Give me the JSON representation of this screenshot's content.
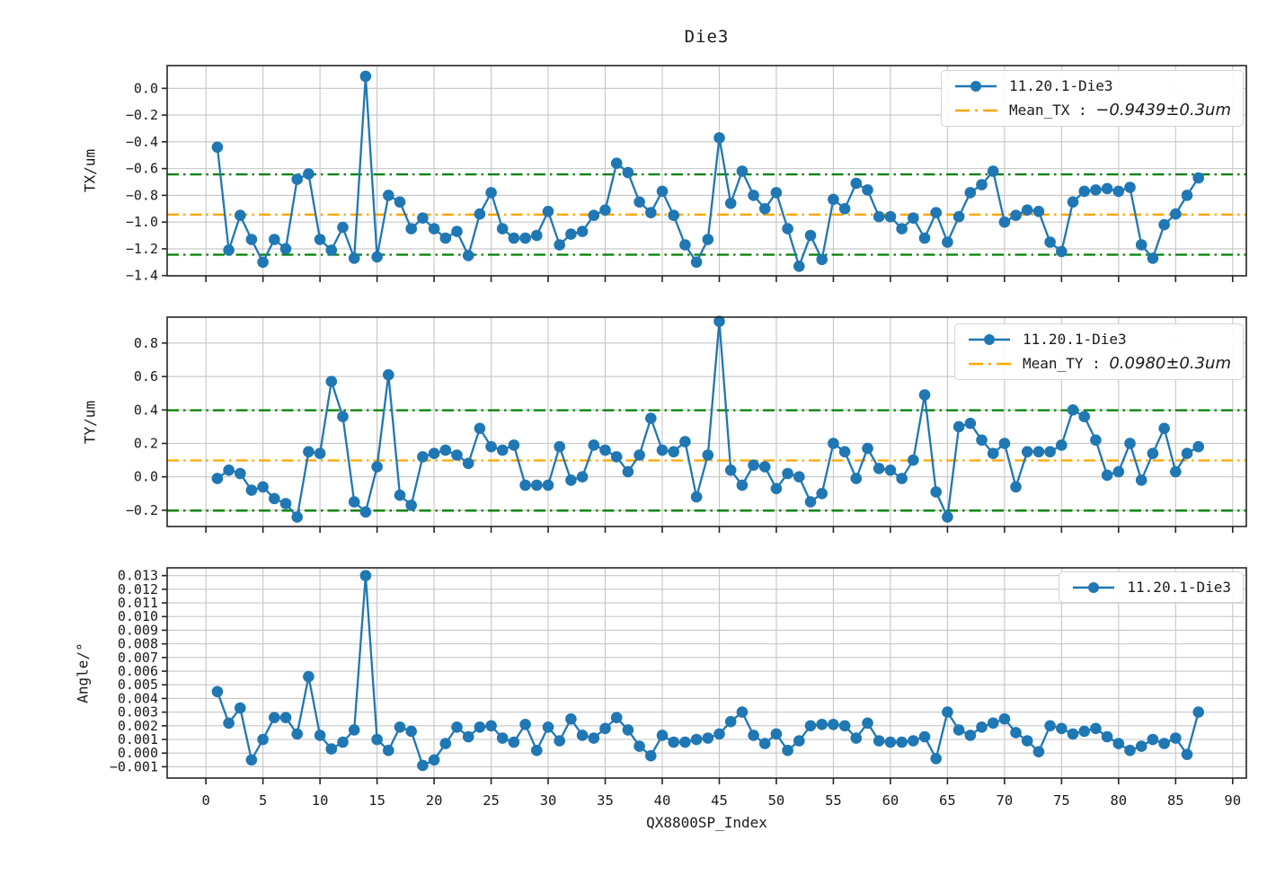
{
  "title": "Die3",
  "colors": {
    "series": "#1f77b4",
    "mean_line": "#FFA500",
    "limit_line": "#008000",
    "grid": "#c6c6c6",
    "spine": "#262626"
  },
  "xaxis": {
    "label": "QX8800SP_Index",
    "ticks": [
      0,
      5,
      10,
      15,
      20,
      25,
      30,
      35,
      40,
      45,
      50,
      55,
      60,
      65,
      70,
      75,
      80,
      85,
      90
    ],
    "xlim": [
      -3.4,
      91.2
    ]
  },
  "legends": {
    "p1": {
      "series": "11.20.1-Die3",
      "mean_prefix": "Mean_TX : ",
      "mean_value": "−0.9439±0.3um"
    },
    "p2": {
      "series": "11.20.1-Die3",
      "mean_prefix": "Mean_TY : ",
      "mean_value": "0.0980±0.3um"
    },
    "p3": {
      "series": "11.20.1-Die3"
    }
  },
  "chart_data": [
    {
      "type": "line",
      "ylabel": "TX/um",
      "series_name": "11.20.1-Die3",
      "mean": -0.9439,
      "band": 0.3,
      "ylim": [
        -1.402,
        0.17
      ],
      "yticks": [
        0.0,
        -0.2,
        -0.4,
        -0.6,
        -0.8,
        -1.0,
        -1.2,
        -1.4
      ],
      "ytick_labels": [
        "0.0",
        "−0.2",
        "−0.4",
        "−0.6",
        "−0.8",
        "−1.0",
        "−1.2",
        "−1.4"
      ],
      "x_start": 1,
      "values": [
        -0.44,
        -1.21,
        -0.95,
        -1.13,
        -1.3,
        -1.13,
        -1.2,
        -0.68,
        -0.64,
        -1.13,
        -1.21,
        -1.04,
        -1.27,
        0.09,
        -1.26,
        -0.8,
        -0.85,
        -1.05,
        -0.97,
        -1.05,
        -1.12,
        -1.07,
        -1.25,
        -0.94,
        -0.78,
        -1.05,
        -1.12,
        -1.12,
        -1.1,
        -0.92,
        -1.17,
        -1.09,
        -1.07,
        -0.95,
        -0.91,
        -0.56,
        -0.63,
        -0.85,
        -0.93,
        -0.77,
        -0.95,
        -1.17,
        -1.3,
        -1.13,
        -0.37,
        -0.86,
        -0.62,
        -0.8,
        -0.9,
        -0.78,
        -1.05,
        -1.33,
        -1.1,
        -1.28,
        -0.83,
        -0.9,
        -0.71,
        -0.76,
        -0.96,
        -0.96,
        -1.05,
        -0.97,
        -1.12,
        -0.93,
        -1.15,
        -0.96,
        -0.78,
        -0.72,
        -0.62,
        -1.0,
        -0.95,
        -0.91,
        -0.92,
        -1.15,
        -1.22,
        -0.85,
        -0.77,
        -0.76,
        -0.75,
        -0.77,
        -0.74,
        -1.17,
        -1.27,
        -1.02,
        -0.94,
        -0.8,
        -0.67
      ]
    },
    {
      "type": "line",
      "ylabel": "TY/um",
      "series_name": "11.20.1-Die3",
      "mean": 0.098,
      "band": 0.3,
      "ylim": [
        -0.297,
        0.955
      ],
      "yticks": [
        0.8,
        0.6,
        0.4,
        0.2,
        0.0,
        -0.2
      ],
      "ytick_labels": [
        "0.8",
        "0.6",
        "0.4",
        "0.2",
        "0.0",
        "−0.2"
      ],
      "x_start": 1,
      "values": [
        -0.01,
        0.04,
        0.02,
        -0.08,
        -0.06,
        -0.13,
        -0.16,
        -0.24,
        0.15,
        0.14,
        0.57,
        0.36,
        -0.15,
        -0.21,
        0.06,
        0.61,
        -0.11,
        -0.17,
        0.12,
        0.14,
        0.16,
        0.13,
        0.08,
        0.29,
        0.18,
        0.16,
        0.19,
        -0.05,
        -0.05,
        -0.05,
        0.18,
        -0.02,
        0.0,
        0.19,
        0.16,
        0.12,
        0.03,
        0.13,
        0.35,
        0.16,
        0.15,
        0.21,
        -0.12,
        0.13,
        0.93,
        0.04,
        -0.05,
        0.07,
        0.06,
        -0.07,
        0.02,
        0.0,
        -0.15,
        -0.1,
        0.2,
        0.15,
        -0.01,
        0.17,
        0.05,
        0.04,
        -0.01,
        0.1,
        0.49,
        -0.09,
        -0.24,
        0.3,
        0.32,
        0.22,
        0.14,
        0.2,
        -0.06,
        0.15,
        0.15,
        0.15,
        0.19,
        0.4,
        0.36,
        0.22,
        0.01,
        0.03,
        0.2,
        -0.02,
        0.14,
        0.29,
        0.03,
        0.14,
        0.18
      ]
    },
    {
      "type": "line",
      "ylabel": "Angle/°",
      "series_name": "11.20.1-Die3",
      "mean": null,
      "band": null,
      "ylim": [
        -0.00183,
        0.01357
      ],
      "yticks": [
        0.013,
        0.012,
        0.011,
        0.01,
        0.009,
        0.008,
        0.007,
        0.006,
        0.005,
        0.004,
        0.003,
        0.002,
        0.001,
        0.0,
        -0.001
      ],
      "ytick_labels": [
        "0.013",
        "0.012",
        "0.011",
        "0.010",
        "0.009",
        "0.008",
        "0.007",
        "0.006",
        "0.005",
        "0.004",
        "0.003",
        "0.002",
        "0.001",
        "0.000",
        "−0.001"
      ],
      "x_start": 1,
      "values": [
        0.0045,
        0.0022,
        0.0033,
        -0.0005,
        0.001,
        0.0026,
        0.0026,
        0.0014,
        0.0056,
        0.0013,
        0.0003,
        0.0008,
        0.0017,
        0.013,
        0.001,
        0.0002,
        0.0019,
        0.0016,
        -0.0009,
        -0.0005,
        0.0007,
        0.0019,
        0.0012,
        0.0019,
        0.002,
        0.0011,
        0.0008,
        0.0021,
        0.0002,
        0.0019,
        0.0009,
        0.0025,
        0.0013,
        0.0011,
        0.0018,
        0.0026,
        0.0017,
        0.0005,
        -0.0002,
        0.0013,
        0.0008,
        0.0008,
        0.001,
        0.0011,
        0.0014,
        0.0023,
        0.003,
        0.0013,
        0.0007,
        0.0014,
        0.0002,
        0.0009,
        0.002,
        0.0021,
        0.0021,
        0.002,
        0.0011,
        0.0022,
        0.0009,
        0.0008,
        0.0008,
        0.0009,
        0.0012,
        -0.0004,
        0.003,
        0.0017,
        0.0013,
        0.0019,
        0.0022,
        0.0025,
        0.0015,
        0.0009,
        0.0001,
        0.002,
        0.0018,
        0.0014,
        0.0016,
        0.0018,
        0.0012,
        0.0007,
        0.0002,
        0.0005,
        0.001,
        0.0007,
        0.0011,
        -0.0001,
        0.003
      ]
    }
  ]
}
